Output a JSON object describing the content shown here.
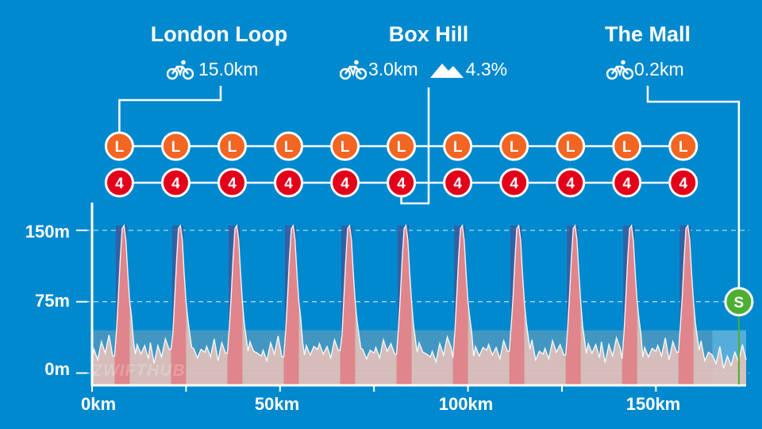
{
  "segments": [
    {
      "name": "London Loop",
      "distance": "15.0km",
      "grade": ""
    },
    {
      "name": "Box Hill",
      "distance": "3.0km",
      "grade": "4.3%"
    },
    {
      "name": "The Mall",
      "distance": "0.2km",
      "grade": ""
    }
  ],
  "markers": {
    "lap_letter": "L",
    "kom_number": "4",
    "sprint_letter": "S"
  },
  "watermark": "ZWIFTHUB",
  "colors": {
    "background": "#0089ce",
    "lap_marker": "#f26522",
    "kom_marker": "#e3001b",
    "sprint_marker": "#4caf32",
    "kom_band": "#3a5a9c",
    "climb_fill": "#e07f86",
    "terrain_fill": "#e8c3b8",
    "loop_overlay": "#93a9b3",
    "line": "#ffffff"
  },
  "chart_data": {
    "type": "area",
    "title": "",
    "xlabel": "",
    "ylabel": "",
    "x_unit": "km",
    "y_unit": "m",
    "xlim": [
      0,
      174
    ],
    "ylim": [
      -12,
      175
    ],
    "x_ticks": [
      0,
      50,
      100,
      150
    ],
    "x_tick_labels": [
      "0km",
      "50km",
      "100km",
      "150km"
    ],
    "y_ticks": [
      0,
      75,
      150
    ],
    "y_tick_labels": [
      "0m",
      "75m",
      "150m"
    ],
    "grid": "horizontal dashed at y ticks",
    "laps": 11,
    "lap_length_km": 15.0,
    "box_hill_climb_km": 3.0,
    "box_hill_grade_pct": 4.3,
    "peak_elevation_m": 155,
    "lap_kom_start_km": [
      6.0,
      21.0,
      36.0,
      51.0,
      66.0,
      81.0,
      96.0,
      111.0,
      126.0,
      141.0,
      156.0
    ],
    "sprint_km": 172.5,
    "finish_km": 174,
    "profile_km": [
      0,
      0.5,
      1.5,
      2.5,
      3.5,
      4.5,
      5.5,
      6.0,
      6.5,
      7.0,
      7.5,
      8.0,
      8.5,
      9.0,
      9.5,
      10.0,
      10.5,
      11.0,
      11.5,
      12.0,
      13.0,
      14.0,
      15.0
    ],
    "profile_elev_m": [
      20,
      28,
      15,
      32,
      18,
      35,
      22,
      20,
      45,
      80,
      120,
      152,
      155,
      140,
      105,
      75,
      55,
      38,
      22,
      30,
      18,
      25,
      20
    ],
    "finish_segment_km": [
      164,
      166,
      167,
      168,
      169,
      170,
      171,
      172,
      173,
      174
    ],
    "finish_segment_elev_m": [
      24,
      10,
      28,
      5,
      18,
      8,
      22,
      12,
      30,
      14
    ]
  }
}
